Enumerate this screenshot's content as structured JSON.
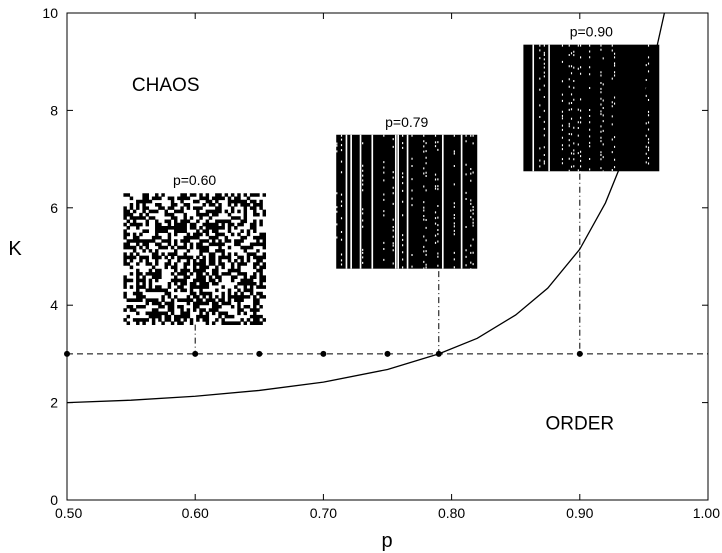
{
  "chart_data": {
    "type": "line",
    "title": "",
    "xlabel": "p",
    "ylabel": "K",
    "xlim": [
      0.5,
      1.0
    ],
    "ylim": [
      0,
      10
    ],
    "x_ticks": [
      0.5,
      0.6,
      0.7,
      0.8,
      0.9,
      1.0
    ],
    "x_tick_labels": [
      "0.50",
      "0.60",
      "0.70",
      "0.80",
      "0.90",
      "1.00"
    ],
    "y_ticks": [
      0,
      2,
      4,
      6,
      8,
      10
    ],
    "y_tick_labels": [
      "0",
      "2",
      "4",
      "6",
      "8",
      "10"
    ],
    "grid": false,
    "curve": {
      "x": [
        0.5,
        0.55,
        0.6,
        0.65,
        0.7,
        0.75,
        0.79,
        0.82,
        0.85,
        0.875,
        0.9,
        0.92,
        0.94,
        0.955,
        0.966
      ],
      "y": [
        2.0,
        2.05,
        2.13,
        2.25,
        2.42,
        2.68,
        3.0,
        3.32,
        3.8,
        4.35,
        5.15,
        6.1,
        7.4,
        8.7,
        10.0
      ]
    },
    "threshold_line": {
      "y": 3,
      "style": "dashed"
    },
    "marked_points": {
      "x": [
        0.5,
        0.6,
        0.65,
        0.7,
        0.75,
        0.79,
        0.9
      ],
      "y": [
        3,
        3,
        3,
        3,
        3,
        3,
        3
      ]
    },
    "drop_lines": [
      {
        "x": 0.6,
        "y_top": 3.6
      },
      {
        "x": 0.79,
        "y_top": 4.7
      },
      {
        "x": 0.9,
        "y_top": 6.7
      }
    ],
    "regions": [
      {
        "label": "CHAOS",
        "x": 0.577,
        "y": 8.4
      },
      {
        "label": "ORDER",
        "x": 0.9,
        "y": 1.45
      }
    ],
    "insets": [
      {
        "label": "p=0.60",
        "p": 0.6,
        "x0": 0.544,
        "x1": 0.655,
        "y0": 3.6,
        "y1": 6.3,
        "texture": "noise",
        "density": 0.5
      },
      {
        "label": "p=0.79",
        "p": 0.79,
        "x0": 0.71,
        "x1": 0.82,
        "y0": 4.75,
        "y1": 7.5,
        "texture": "stripes",
        "density": 0.82
      },
      {
        "label": "p=0.90",
        "p": 0.9,
        "x0": 0.856,
        "x1": 0.962,
        "y0": 6.75,
        "y1": 9.35,
        "texture": "stripes",
        "density": 0.94
      }
    ],
    "colors": {
      "line": "#000000",
      "background": "#ffffff"
    }
  }
}
